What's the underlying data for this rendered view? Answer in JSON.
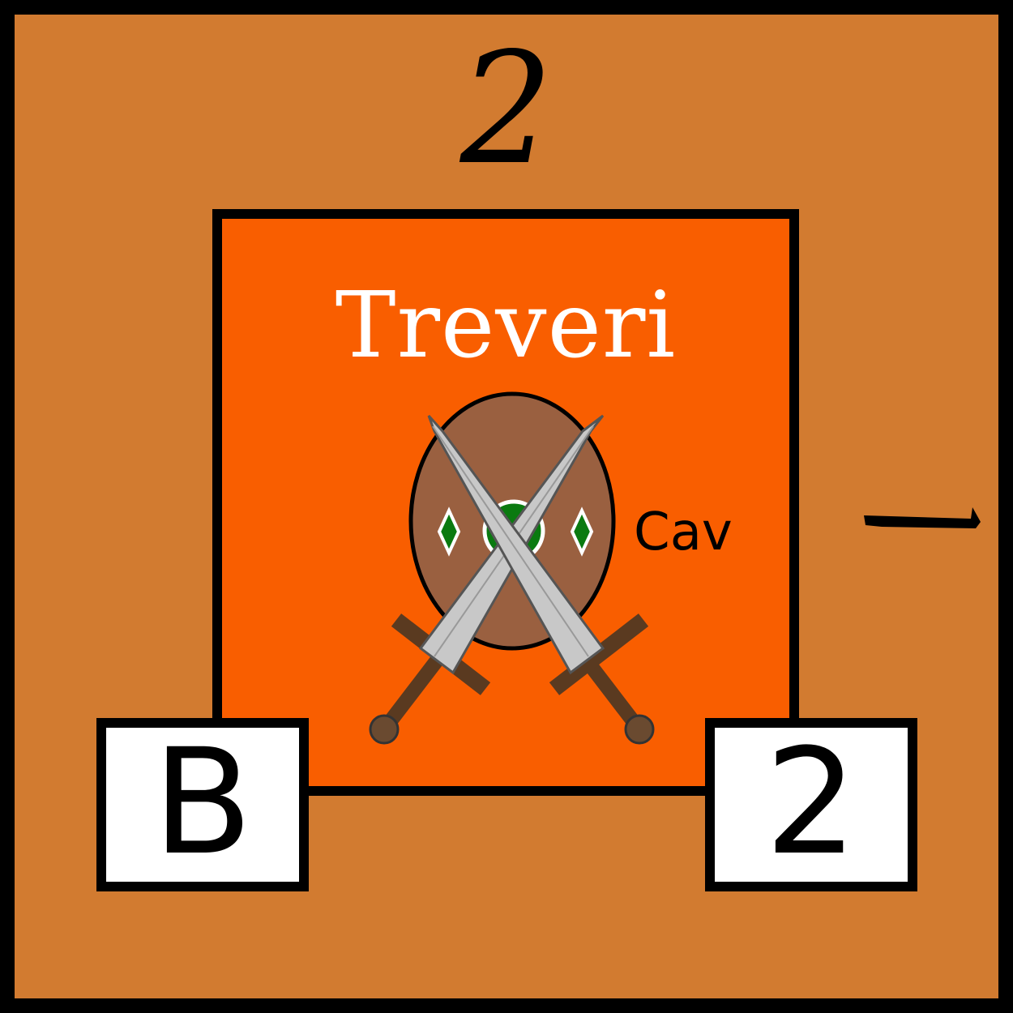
{
  "counter": {
    "top_value": "2",
    "unit_name": "Treveri",
    "unit_type": "Cav",
    "left_rating": "B",
    "right_value": "2"
  },
  "colors": {
    "border": "#000000",
    "counter_background": "#d27b30",
    "unit_background": "#f95e00",
    "unit_name_text": "#ffffff",
    "shield": "#9a6040",
    "shield_gem": "#0a7a10",
    "blade": "#c8c8c8",
    "hilt": "#5a3a20"
  },
  "icons": {
    "emblem": "shield-crossed-swords-icon",
    "move_indicator": "movement-dash-icon"
  }
}
